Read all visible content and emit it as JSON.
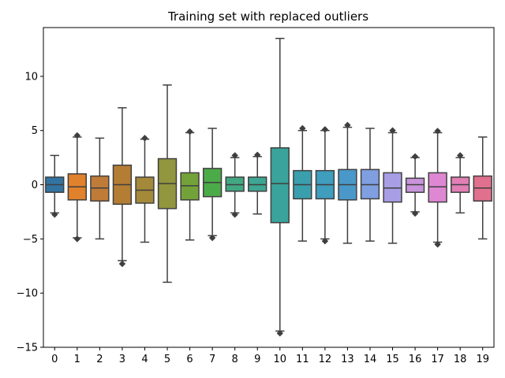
{
  "chart_data": {
    "type": "box",
    "title": "Training set with replaced outliers",
    "xlabel": "",
    "ylabel": "",
    "ylim": [
      -15,
      14.5
    ],
    "yticks": [
      -15,
      -10,
      -5,
      0,
      5,
      10
    ],
    "ytick_labels": [
      "−15",
      "−10",
      "−5",
      "0",
      "5",
      "10"
    ],
    "grid": false,
    "legend": "none",
    "categories": [
      "0",
      "1",
      "2",
      "3",
      "4",
      "5",
      "6",
      "7",
      "8",
      "9",
      "10",
      "11",
      "12",
      "13",
      "14",
      "15",
      "16",
      "17",
      "18",
      "19"
    ],
    "boxes": [
      {
        "label": "0",
        "whisker_low": -2.6,
        "q1": -0.7,
        "median": 0.0,
        "q3": 0.7,
        "whisker_high": 2.7,
        "outliers_low": [
          -2.75
        ],
        "outliers_high": [],
        "color": "#3274a1"
      },
      {
        "label": "1",
        "whisker_low": -4.9,
        "q1": -1.4,
        "median": -0.2,
        "q3": 1.0,
        "whisker_high": 4.4,
        "outliers_low": [
          -5.0
        ],
        "outliers_high": [
          4.55
        ],
        "color": "#e1812c"
      },
      {
        "label": "2",
        "whisker_low": -5.0,
        "q1": -1.5,
        "median": -0.3,
        "q3": 0.8,
        "whisker_high": 4.3,
        "outliers_low": [],
        "outliers_high": [],
        "color": "#c07b39"
      },
      {
        "label": "3",
        "whisker_low": -7.0,
        "q1": -1.8,
        "median": 0.0,
        "q3": 1.8,
        "whisker_high": 7.1,
        "outliers_low": [
          -7.3
        ],
        "outliers_high": [],
        "color": "#b47d34"
      },
      {
        "label": "4",
        "whisker_low": -5.3,
        "q1": -1.7,
        "median": -0.5,
        "q3": 0.7,
        "whisker_high": 4.2,
        "outliers_low": [],
        "outliers_high": [
          4.3
        ],
        "color": "#a5893b"
      },
      {
        "label": "5",
        "whisker_low": -9.0,
        "q1": -2.2,
        "median": 0.1,
        "q3": 2.4,
        "whisker_high": 9.2,
        "outliers_low": [],
        "outliers_high": [],
        "color": "#91963f"
      },
      {
        "label": "6",
        "whisker_low": -5.1,
        "q1": -1.4,
        "median": -0.1,
        "q3": 1.1,
        "whisker_high": 4.8,
        "outliers_low": [],
        "outliers_high": [
          4.9
        ],
        "color": "#74a23a"
      },
      {
        "label": "7",
        "whisker_low": -4.7,
        "q1": -1.1,
        "median": 0.2,
        "q3": 1.5,
        "whisker_high": 5.2,
        "outliers_low": [
          -4.9
        ],
        "outliers_high": [],
        "color": "#4cab49"
      },
      {
        "label": "8",
        "whisker_low": -2.6,
        "q1": -0.6,
        "median": 0.0,
        "q3": 0.7,
        "whisker_high": 2.5,
        "outliers_low": [
          -2.75
        ],
        "outliers_high": [
          2.7
        ],
        "color": "#42a882"
      },
      {
        "label": "9",
        "whisker_low": -2.7,
        "q1": -0.6,
        "median": 0.0,
        "q3": 0.7,
        "whisker_high": 2.6,
        "outliers_low": [],
        "outliers_high": [
          2.75
        ],
        "color": "#3ea692"
      },
      {
        "label": "10",
        "whisker_low": -13.5,
        "q1": -3.5,
        "median": 0.1,
        "q3": 3.4,
        "whisker_high": 13.5,
        "outliers_low": [
          -13.7
        ],
        "outliers_high": [],
        "color": "#3aa39b"
      },
      {
        "label": "11",
        "whisker_low": -5.2,
        "q1": -1.3,
        "median": 0.0,
        "q3": 1.3,
        "whisker_high": 5.0,
        "outliers_low": [],
        "outliers_high": [
          5.2
        ],
        "color": "#3a9fac"
      },
      {
        "label": "12",
        "whisker_low": -5.0,
        "q1": -1.3,
        "median": 0.0,
        "q3": 1.3,
        "whisker_high": 5.0,
        "outliers_low": [
          -5.2
        ],
        "outliers_high": [
          5.1
        ],
        "color": "#3f9dbd"
      },
      {
        "label": "13",
        "whisker_low": -5.4,
        "q1": -1.4,
        "median": 0.0,
        "q3": 1.4,
        "whisker_high": 5.3,
        "outliers_low": [],
        "outliers_high": [
          5.5
        ],
        "color": "#4a98c9"
      },
      {
        "label": "14",
        "whisker_low": -5.2,
        "q1": -1.3,
        "median": 0.0,
        "q3": 1.4,
        "whisker_high": 5.2,
        "outliers_low": [],
        "outliers_high": [],
        "color": "#7f9fe0"
      },
      {
        "label": "15",
        "whisker_low": -5.4,
        "q1": -1.6,
        "median": -0.3,
        "q3": 1.1,
        "whisker_high": 4.8,
        "outliers_low": [],
        "outliers_high": [
          5.0
        ],
        "color": "#a89ee6"
      },
      {
        "label": "16",
        "whisker_low": -2.5,
        "q1": -0.7,
        "median": 0.0,
        "q3": 0.6,
        "whisker_high": 2.5,
        "outliers_low": [
          -2.65
        ],
        "outliers_high": [
          2.6
        ],
        "color": "#c994dc"
      },
      {
        "label": "17",
        "whisker_low": -5.3,
        "q1": -1.6,
        "median": -0.2,
        "q3": 1.1,
        "whisker_high": 4.8,
        "outliers_low": [
          -5.5
        ],
        "outliers_high": [
          4.95
        ],
        "color": "#de87d2"
      },
      {
        "label": "18",
        "whisker_low": -2.6,
        "q1": -0.7,
        "median": 0.0,
        "q3": 0.7,
        "whisker_high": 2.5,
        "outliers_low": [],
        "outliers_high": [
          2.7
        ],
        "color": "#e27fb5"
      },
      {
        "label": "19",
        "whisker_low": -5.0,
        "q1": -1.5,
        "median": -0.3,
        "q3": 0.8,
        "whisker_high": 4.4,
        "outliers_low": [],
        "outliers_high": [],
        "color": "#e0708e"
      }
    ]
  }
}
